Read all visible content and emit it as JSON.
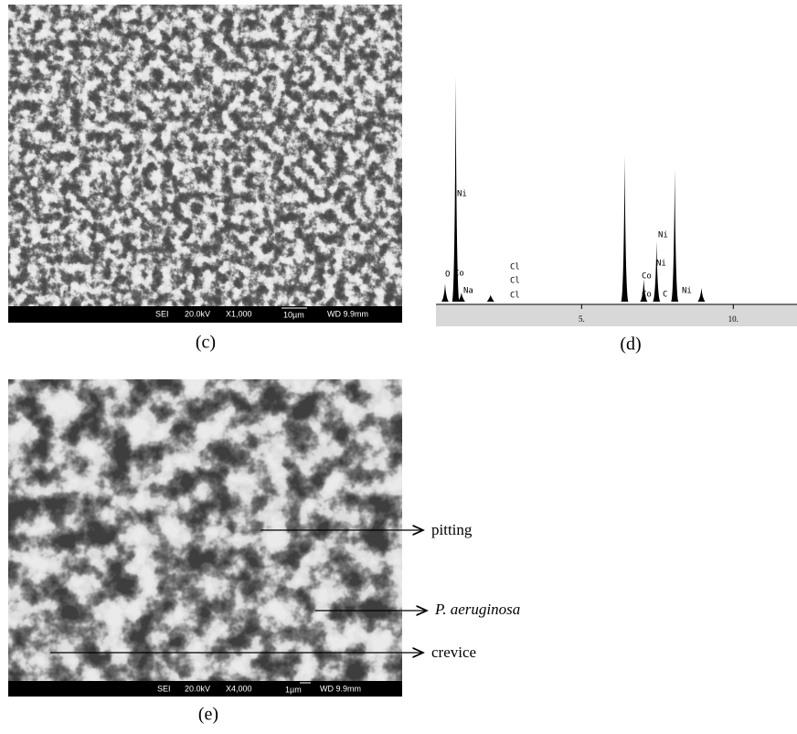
{
  "panel_c": {
    "info_bar": [
      "SEI",
      "20.0kV",
      "X1,000",
      "10µm",
      "WD 9.9mm"
    ],
    "caption": "(c)"
  },
  "chart_data": {
    "type": "spectrum",
    "x": [
      0.5,
      0.85,
      1.04,
      2.0,
      6.42,
      7.05,
      7.47,
      8.07,
      8.95
    ],
    "values": [
      8,
      100,
      4,
      3,
      65,
      10,
      27,
      59,
      6
    ],
    "color": "#000000",
    "xlim": [
      0.2,
      12.1
    ],
    "ylim": [
      0,
      100
    ],
    "xticks": [
      {
        "value": 5,
        "label": "5."
      },
      {
        "value": 10,
        "label": "10."
      }
    ],
    "peak_labels": [
      "Ni",
      "O",
      "Co",
      "Na",
      "Cl",
      "Cl",
      "Cl",
      "Co",
      "Ni",
      "Ni",
      "Ni",
      "Co",
      "C"
    ],
    "caption": "(d)"
  },
  "panel_e": {
    "info_bar": [
      "SEI",
      "20.0kV",
      "X4,000",
      "1µm",
      "WD 9.9mm"
    ],
    "annotations": [
      "pitting",
      "P. aeruginosa",
      "crevice"
    ],
    "caption": "(e)"
  }
}
